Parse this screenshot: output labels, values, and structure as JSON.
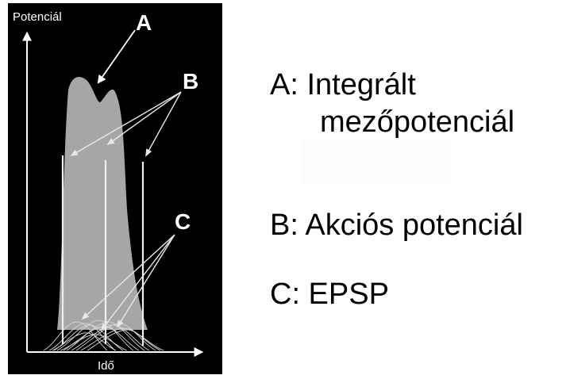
{
  "figure": {
    "y_axis_label": "Potenciál",
    "x_axis_label": "Idő",
    "marker_a": "A",
    "marker_b": "B",
    "marker_c": "C",
    "colors": {
      "background": "#000000",
      "axes": "#ffffff",
      "field_potential": "#a6a6a6",
      "epsp_traces": "#d8d8d8",
      "arrows": "#ffffff"
    }
  },
  "legend": {
    "a_line1": "A: Integrált",
    "a_line2": "mezőpotenciál",
    "b": "B: Akciós potenciál",
    "c": "C: EPSP"
  }
}
